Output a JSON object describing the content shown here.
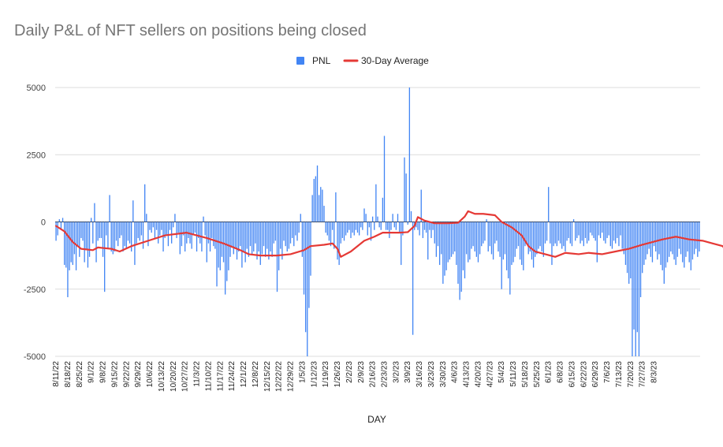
{
  "chart_data": {
    "type": "bar",
    "title": "Daily P&L of NFT sellers on positions being closed",
    "xlabel": "DAY",
    "ylabel": "",
    "ylim": [
      -5000,
      5000
    ],
    "yticks": [
      5000,
      2500,
      0,
      -2500,
      -5000
    ],
    "grid": true,
    "legend_placement": "top-center",
    "start_date": "2022-08-11",
    "tick_labels": [
      "8/11/22",
      "8/18/22",
      "8/25/22",
      "9/1/22",
      "9/8/22",
      "9/15/22",
      "9/22/22",
      "9/29/22",
      "10/6/22",
      "10/13/22",
      "10/20/22",
      "10/27/22",
      "11/3/22",
      "11/10/22",
      "11/17/22",
      "11/24/22",
      "12/1/22",
      "12/8/22",
      "12/15/22",
      "12/22/22",
      "12/29/22",
      "1/5/23",
      "1/12/23",
      "1/19/23",
      "1/26/23",
      "2/2/23",
      "2/9/23",
      "2/16/23",
      "2/23/23",
      "3/2/23",
      "3/9/23",
      "3/16/23",
      "3/23/23",
      "3/30/23",
      "4/6/23",
      "4/13/23",
      "4/20/23",
      "4/27/23",
      "5/4/23",
      "5/11/23",
      "5/18/23",
      "5/25/23",
      "6/1/23",
      "6/8/23",
      "6/15/23",
      "6/22/23",
      "6/29/23",
      "7/6/23",
      "7/13/23",
      "7/20/23",
      "7/27/23",
      "8/3/23"
    ],
    "series": [
      {
        "name": "PNL",
        "type": "bar",
        "color": "#4285F4",
        "values": [
          -700,
          -500,
          100,
          -300,
          150,
          -1600,
          -1700,
          -2800,
          -1800,
          -1500,
          -1600,
          -1200,
          -1800,
          -900,
          -1300,
          -600,
          -700,
          -1500,
          -1000,
          -1700,
          -1300,
          150,
          -800,
          700,
          -1500,
          -700,
          -600,
          -600,
          -1300,
          -2600,
          -500,
          -1000,
          1000,
          -1100,
          -1200,
          -1100,
          -700,
          -900,
          -600,
          -500,
          -1100,
          -900,
          -1000,
          -700,
          -800,
          -1100,
          800,
          -1600,
          -800,
          -600,
          -700,
          -500,
          -1000,
          1400,
          300,
          -900,
          -300,
          -400,
          -200,
          -600,
          -300,
          -800,
          -500,
          -300,
          -1100,
          -600,
          -500,
          -900,
          -300,
          -800,
          -200,
          300,
          -600,
          -400,
          -1200,
          -900,
          -500,
          -1100,
          -800,
          -600,
          -800,
          -1000,
          -500,
          -400,
          -1100,
          -600,
          -800,
          -1100,
          200,
          -500,
          -1500,
          -800,
          -1100,
          -600,
          -900,
          -1000,
          -2400,
          -1700,
          -1800,
          -1300,
          -1500,
          -2700,
          -2200,
          -1800,
          -1300,
          -900,
          -1200,
          -1000,
          -1400,
          -1100,
          -900,
          -1700,
          -1100,
          -1500,
          -1000,
          -1300,
          -900,
          -1200,
          -1100,
          -800,
          -1400,
          -1100,
          -1600,
          -1200,
          -900,
          -1300,
          -1000,
          -1400,
          -1100,
          -1300,
          -800,
          -700,
          -2600,
          -1800,
          -1000,
          -1400,
          -700,
          -900,
          -1100,
          -1000,
          -800,
          -600,
          -900,
          -500,
          -700,
          -400,
          300,
          -1300,
          -2700,
          -4100,
          -5000,
          -3200,
          -2000,
          1000,
          1600,
          1700,
          2100,
          1000,
          1300,
          1200,
          600,
          -400,
          -500,
          -700,
          -900,
          -300,
          -1000,
          1100,
          -1400,
          -1600,
          -800,
          -600,
          -700,
          -500,
          -400,
          -300,
          -600,
          -400,
          -500,
          -300,
          -400,
          -500,
          -200,
          -300,
          500,
          300,
          -500,
          -200,
          -700,
          200,
          -300,
          1400,
          200,
          -200,
          -300,
          900,
          3200,
          -300,
          -300,
          -600,
          -300,
          300,
          -200,
          -300,
          300,
          -400,
          -1600,
          -500,
          2400,
          1800,
          -100,
          5000,
          400,
          -4200,
          -300,
          -200,
          -300,
          -500,
          1200,
          -600,
          -300,
          -400,
          -1400,
          -300,
          -600,
          -300,
          -800,
          -1300,
          -900,
          -1600,
          -1200,
          -2300,
          -2000,
          -1800,
          -1500,
          -1400,
          -1300,
          -1200,
          -1100,
          -1600,
          -2300,
          -2900,
          -2600,
          -1800,
          -2100,
          -1200,
          -1500,
          -1400,
          -1000,
          -900,
          -1100,
          -1300,
          -1500,
          -1200,
          -900,
          -800,
          -700,
          100,
          -1100,
          -900,
          -1200,
          -1400,
          -800,
          -700,
          -1100,
          -1300,
          -2500,
          -1400,
          -1200,
          -1800,
          -2100,
          -2700,
          -1600,
          -1500,
          -1300,
          -1000,
          -900,
          -1400,
          -1600,
          -1800,
          -900,
          -800,
          -1200,
          -1100,
          -1400,
          -1700,
          -1300,
          -1200,
          -1000,
          -900,
          -1100,
          -1300,
          -800,
          -700,
          1300,
          -800,
          -1600,
          -900,
          -800,
          -900,
          -700,
          -800,
          -1000,
          -900,
          -1100,
          -700,
          -600,
          -800,
          -900,
          100,
          -700,
          -600,
          -500,
          -800,
          -700,
          -900,
          -600,
          -800,
          -700,
          -400,
          -500,
          -600,
          -700,
          -1500,
          -500,
          -600,
          -400,
          -700,
          -800,
          -600,
          -500,
          -900,
          -1000,
          -700,
          -800,
          -600,
          -900,
          -500,
          -1000,
          -1200,
          -1600,
          -1900,
          -2300,
          -2100,
          -5000,
          -4000,
          -5000,
          -4100,
          -5000,
          -2800,
          -1900,
          -1600,
          -1400,
          -1200,
          -1000,
          -1300,
          -1500,
          -900,
          -1100,
          -1400,
          -1200,
          -1600,
          -1800,
          -2300,
          -1700,
          -1500,
          -1300,
          -1100,
          -1200,
          -1400,
          -1600,
          -1300,
          -1000,
          -1200,
          -1500,
          -1700,
          -1300,
          -1100,
          -1500,
          -1800,
          -1400,
          -1200,
          -1000,
          -1300,
          -1100
        ]
      },
      {
        "name": "30-Day Average",
        "type": "line",
        "color": "#E53935",
        "points": [
          [
            0,
            -150
          ],
          [
            5,
            -350
          ],
          [
            10,
            -750
          ],
          [
            15,
            -1000
          ],
          [
            22,
            -1050
          ],
          [
            25,
            -950
          ],
          [
            33,
            -1000
          ],
          [
            38,
            -1100
          ],
          [
            45,
            -900
          ],
          [
            55,
            -700
          ],
          [
            65,
            -500
          ],
          [
            78,
            -400
          ],
          [
            90,
            -600
          ],
          [
            100,
            -800
          ],
          [
            110,
            -1050
          ],
          [
            115,
            -1200
          ],
          [
            122,
            -1250
          ],
          [
            132,
            -1250
          ],
          [
            140,
            -1200
          ],
          [
            148,
            -1050
          ],
          [
            152,
            -900
          ],
          [
            160,
            -850
          ],
          [
            165,
            -800
          ],
          [
            168,
            -1000
          ],
          [
            170,
            -1300
          ],
          [
            176,
            -1100
          ],
          [
            184,
            -700
          ],
          [
            190,
            -550
          ],
          [
            195,
            -400
          ],
          [
            205,
            -400
          ],
          [
            210,
            -380
          ],
          [
            214,
            -150
          ],
          [
            216,
            180
          ],
          [
            220,
            50
          ],
          [
            226,
            -50
          ],
          [
            234,
            -50
          ],
          [
            240,
            -30
          ],
          [
            244,
            200
          ],
          [
            246,
            400
          ],
          [
            250,
            300
          ],
          [
            255,
            300
          ],
          [
            262,
            250
          ],
          [
            266,
            0
          ],
          [
            272,
            -200
          ],
          [
            278,
            -500
          ],
          [
            282,
            -900
          ],
          [
            286,
            -1100
          ],
          [
            292,
            -1200
          ],
          [
            298,
            -1300
          ],
          [
            304,
            -1150
          ],
          [
            312,
            -1200
          ],
          [
            318,
            -1150
          ],
          [
            326,
            -1200
          ],
          [
            334,
            -1100
          ],
          [
            342,
            -1000
          ],
          [
            350,
            -850
          ],
          [
            356,
            -750
          ],
          [
            362,
            -650
          ],
          [
            370,
            -550
          ],
          [
            378,
            -650
          ],
          [
            386,
            -700
          ],
          [
            392,
            -800
          ],
          [
            398,
            -900
          ],
          [
            402,
            -1300
          ],
          [
            406,
            -1900
          ],
          [
            410,
            -2000
          ],
          [
            418,
            -2050
          ],
          [
            424,
            -2150
          ],
          [
            428,
            -2250
          ],
          [
            432,
            -2200
          ],
          [
            436,
            -2150
          ],
          [
            440,
            -1900
          ],
          [
            444,
            -1700
          ],
          [
            448,
            -1350
          ]
        ]
      }
    ]
  }
}
